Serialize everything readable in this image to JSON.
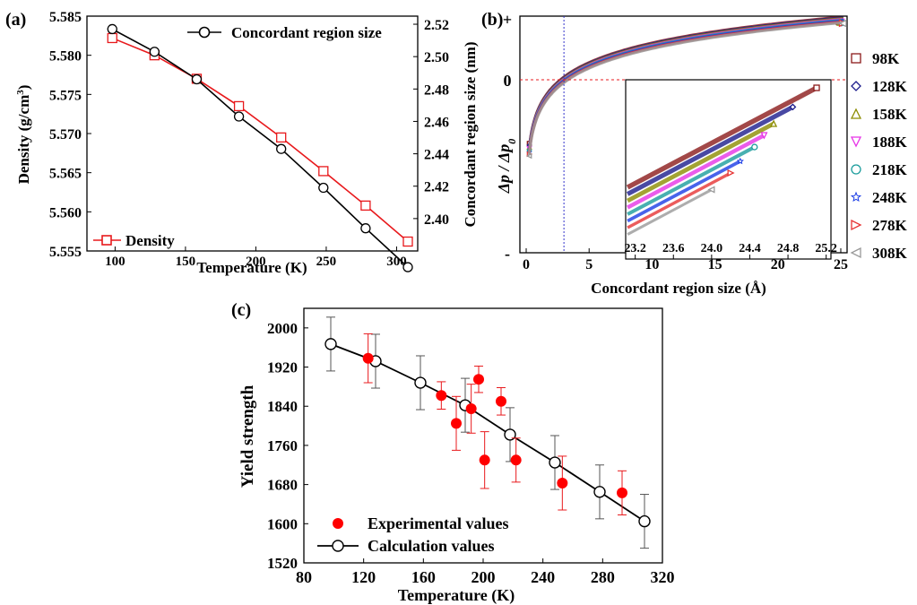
{
  "chart_data": [
    {
      "panel_label": "(a)",
      "type": "line",
      "xlabel": "Temperature (K)",
      "ylabel": "Density (g/cm",
      "ylabel_sup": "3",
      "ylabel_close": ")",
      "y2label": "Concordant region size (nm)",
      "xlim": [
        80,
        315
      ],
      "ylim": [
        5.555,
        5.585
      ],
      "y2lim": [
        2.38,
        2.525
      ],
      "xticks": [
        100,
        150,
        200,
        250,
        300
      ],
      "yticks": [
        5.555,
        5.56,
        5.565,
        5.57,
        5.575,
        5.58,
        5.585
      ],
      "ytick_labels": [
        "5.555",
        "5.560",
        "5.565",
        "5.570",
        "5.575",
        "5.580",
        "5.585"
      ],
      "y2ticks": [
        2.4,
        2.42,
        2.44,
        2.46,
        2.48,
        2.5,
        2.52
      ],
      "y2tick_labels": [
        "2.40",
        "2.42",
        "2.44",
        "2.46",
        "2.48",
        "2.50",
        "2.52"
      ],
      "x": [
        98,
        128,
        158,
        188,
        218,
        248,
        278,
        308
      ],
      "series": [
        {
          "name": "Density",
          "axis": "left",
          "color": "#e8191c",
          "marker": "square",
          "values": [
            5.5822,
            5.58,
            5.577,
            5.5735,
            5.5695,
            5.5652,
            5.5608,
            5.5562
          ]
        },
        {
          "name": "Concordant region size",
          "axis": "right",
          "color": "#000000",
          "marker": "circle",
          "values": [
            2.517,
            2.503,
            2.486,
            2.463,
            2.443,
            2.419,
            2.394,
            2.37
          ]
        }
      ],
      "legend": [
        "Concordant region size",
        "Density"
      ]
    },
    {
      "panel_label": "(b)",
      "type": "line",
      "xlabel": "Concordant region size (Å)",
      "ylabel": "Δp / Δp",
      "ylabel_sub": "0",
      "xlim": [
        -0.5,
        25.5
      ],
      "xticks": [
        0,
        5,
        10,
        15,
        20,
        25
      ],
      "ytick_labels": [
        "+",
        "0",
        "-"
      ],
      "zero_crossing_x": 3.0,
      "series": [
        {
          "name": "98K",
          "color": "#8b1a1a",
          "marker": "square"
        },
        {
          "name": "128K",
          "color": "#1c1c8c",
          "marker": "diamond"
        },
        {
          "name": "158K",
          "color": "#8c8c00",
          "marker": "triangle-up"
        },
        {
          "name": "188K",
          "color": "#e633e6",
          "marker": "triangle-down"
        },
        {
          "name": "218K",
          "color": "#1a9c9c",
          "marker": "circle"
        },
        {
          "name": "248K",
          "color": "#1a3ce6",
          "marker": "star"
        },
        {
          "name": "278K",
          "color": "#e63333",
          "marker": "triangle-right"
        },
        {
          "name": "308K",
          "color": "#999999",
          "marker": "triangle-left"
        }
      ],
      "inset": {
        "xticks": [
          23.2,
          23.6,
          24.0,
          24.4,
          24.8,
          25.2
        ],
        "xtick_labels": [
          "23.2",
          "23.6",
          "24.0",
          "24.4",
          "24.8",
          "25.2"
        ],
        "xlim": [
          23.1,
          25.25
        ],
        "line_end_x": [
          25.1,
          24.85,
          24.65,
          24.55,
          24.45,
          24.3,
          24.2,
          24.0
        ]
      }
    },
    {
      "panel_label": "(c)",
      "type": "scatter",
      "xlabel": "Temperature (K)",
      "ylabel": "Yield strength",
      "xlim": [
        80,
        320
      ],
      "ylim": [
        1520,
        2040
      ],
      "xticks": [
        80,
        120,
        160,
        200,
        240,
        280,
        320
      ],
      "yticks": [
        1520,
        1600,
        1680,
        1760,
        1840,
        1920,
        2000
      ],
      "series": [
        {
          "name": "Experimental values",
          "color": "#ff0000",
          "marker": "filled-circle",
          "points": [
            [
              123,
              1938,
              50
            ],
            [
              172,
              1862,
              28
            ],
            [
              182,
              1805,
              55
            ],
            [
              192,
              1835,
              50
            ],
            [
              197,
              1895,
              27
            ],
            [
              201,
              1730,
              58
            ],
            [
              212,
              1850,
              28
            ],
            [
              222,
              1730,
              45
            ],
            [
              253,
              1683,
              55
            ],
            [
              293,
              1663,
              45
            ]
          ]
        },
        {
          "name": "Calculation values",
          "color": "#000000",
          "marker": "open-circle",
          "points": [
            [
              98,
              1967,
              55
            ],
            [
              128,
              1932,
              55
            ],
            [
              158,
              1888,
              55
            ],
            [
              188,
              1842,
              55
            ],
            [
              218,
              1782,
              55
            ],
            [
              248,
              1725,
              55
            ],
            [
              278,
              1665,
              55
            ],
            [
              308,
              1605,
              55
            ]
          ]
        }
      ]
    }
  ]
}
